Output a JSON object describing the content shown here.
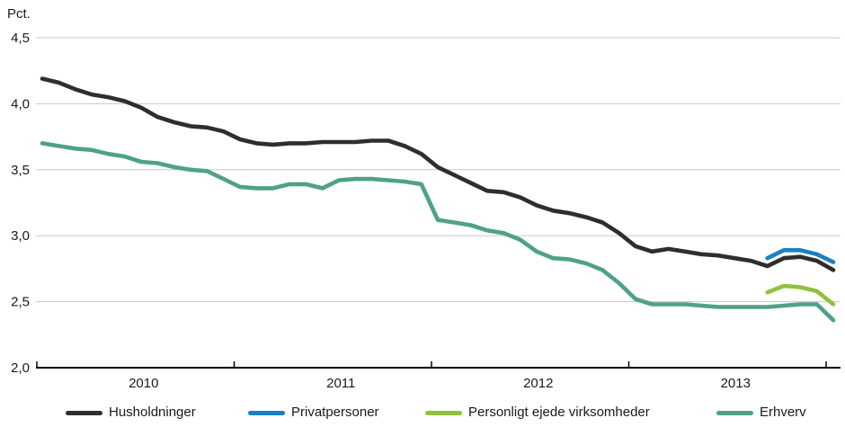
{
  "chart_data": {
    "type": "line",
    "title": "",
    "y_unit": "Pct.",
    "ylim": [
      2.0,
      4.5
    ],
    "grid": "horizontal",
    "legend_position": "bottom",
    "y_ticks": [
      {
        "value": 4.5,
        "label": "4,5"
      },
      {
        "value": 4.0,
        "label": "4,0"
      },
      {
        "value": 3.5,
        "label": "3,5"
      },
      {
        "value": 3.0,
        "label": "3,0"
      },
      {
        "value": 2.5,
        "label": "2,5"
      },
      {
        "value": 2.0,
        "label": "2,0"
      }
    ],
    "x_unit": "month",
    "x_points_total": 49,
    "x_year_labels": [
      "2010",
      "2011",
      "2012",
      "2013"
    ],
    "series": [
      {
        "name": "Husholdninger",
        "color": "#2e2e2e",
        "start_index": 0,
        "values": [
          4.19,
          4.16,
          4.11,
          4.07,
          4.05,
          4.02,
          3.97,
          3.9,
          3.86,
          3.83,
          3.82,
          3.79,
          3.73,
          3.7,
          3.69,
          3.7,
          3.7,
          3.71,
          3.71,
          3.71,
          3.72,
          3.72,
          3.68,
          3.62,
          3.52,
          3.46,
          3.4,
          3.34,
          3.33,
          3.29,
          3.23,
          3.19,
          3.17,
          3.14,
          3.1,
          3.02,
          2.92,
          2.88,
          2.9,
          2.88,
          2.86,
          2.85,
          2.83,
          2.81,
          2.77,
          2.83,
          2.84,
          2.81,
          2.74
        ]
      },
      {
        "name": "Privatpersoner",
        "color": "#1b7fc3",
        "start_index": 44,
        "values": [
          2.83,
          2.89,
          2.89,
          2.86,
          2.8
        ]
      },
      {
        "name": "Personligt ejede virksomheder",
        "color": "#90c13e",
        "start_index": 44,
        "values": [
          2.57,
          2.62,
          2.61,
          2.58,
          2.48
        ]
      },
      {
        "name": "Erhverv",
        "color": "#4fa18a",
        "start_index": 0,
        "values": [
          3.7,
          3.68,
          3.66,
          3.65,
          3.62,
          3.6,
          3.56,
          3.55,
          3.52,
          3.5,
          3.49,
          3.43,
          3.37,
          3.36,
          3.36,
          3.39,
          3.39,
          3.36,
          3.42,
          3.43,
          3.43,
          3.42,
          3.41,
          3.39,
          3.12,
          3.1,
          3.08,
          3.04,
          3.02,
          2.97,
          2.88,
          2.83,
          2.82,
          2.79,
          2.74,
          2.64,
          2.52,
          2.48,
          2.48,
          2.48,
          2.47,
          2.46,
          2.46,
          2.46,
          2.46,
          2.47,
          2.48,
          2.48,
          2.36
        ]
      }
    ],
    "style": {
      "gridline_color": "#c8c8c8",
      "axis_color": "#000000",
      "text_color": "#1a1a1a",
      "line_width": 4.6
    }
  },
  "legend": {
    "items": [
      "Husholdninger",
      "Privatpersoner",
      "Personligt ejede virksomheder",
      "Erhverv"
    ]
  }
}
